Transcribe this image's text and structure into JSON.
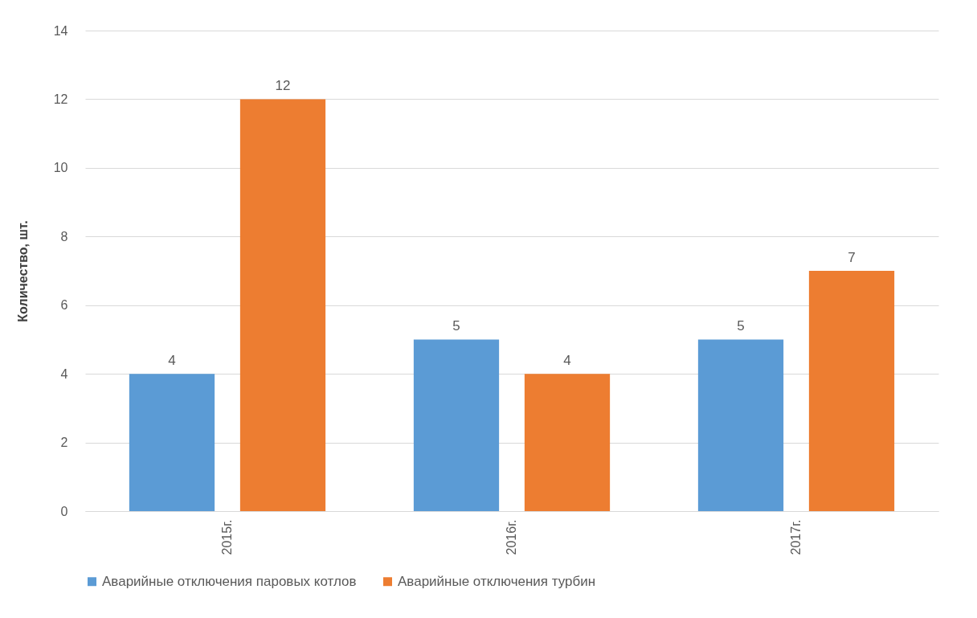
{
  "chart_data": {
    "type": "bar",
    "ylabel": "Количество, шт.",
    "categories": [
      "2015г.",
      "2016г.",
      "2017г."
    ],
    "series": [
      {
        "name": "Аварийные отключения паровых котлов",
        "color": "#5b9bd5",
        "values": [
          4,
          5,
          5
        ]
      },
      {
        "name": "Аварийные отключения турбин",
        "color": "#ed7d31",
        "values": [
          12,
          4,
          7
        ]
      }
    ],
    "ylim": [
      0,
      14
    ],
    "yticks": [
      0,
      2,
      4,
      6,
      8,
      10,
      12,
      14
    ],
    "grid": "y",
    "legend": "bottom",
    "data_labels": true
  }
}
